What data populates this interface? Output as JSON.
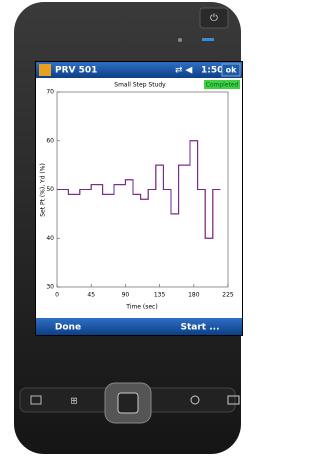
{
  "screen": {
    "title": "PRV 501",
    "time": "1:50",
    "ok": "ok",
    "status": "Completed",
    "left_softkey": "Done",
    "right_softkey": "Start ..."
  },
  "chart_data": {
    "type": "line",
    "title": "Small Step Study",
    "x_label": "Time (sec)",
    "y_label": "Set Pt (%), Yd (%)",
    "x": [
      0,
      15,
      15,
      30,
      30,
      45,
      45,
      60,
      60,
      75,
      75,
      90,
      90,
      100,
      100,
      110,
      110,
      120,
      120,
      130,
      130,
      140,
      140,
      150,
      150,
      160,
      160,
      175,
      175,
      185,
      185,
      195,
      195,
      205,
      205,
      215
    ],
    "series": [
      {
        "color": "#d01010",
        "values": [
          50,
          50,
          49,
          49,
          50,
          50,
          51,
          51,
          49,
          49,
          51,
          51,
          52,
          52,
          49,
          49,
          48,
          48,
          50,
          50,
          55,
          55,
          50,
          50,
          45,
          45,
          55,
          55,
          60,
          60,
          50,
          50,
          40,
          40,
          50,
          50
        ]
      },
      {
        "color": "#6a2a9a",
        "values": [
          50,
          50,
          49,
          49,
          50,
          50,
          51,
          51,
          49,
          49,
          51,
          51,
          52,
          52,
          49,
          49,
          48,
          48,
          50,
          50,
          55,
          55,
          50,
          50,
          45,
          45,
          55,
          55,
          60,
          60,
          50,
          50,
          40,
          40,
          50,
          50
        ]
      }
    ],
    "xlim": [
      0,
      225
    ],
    "xticks": [
      0,
      45,
      90,
      135,
      180,
      225
    ],
    "ylim": [
      30,
      70
    ],
    "yticks": [
      30,
      40,
      50,
      60,
      70
    ]
  }
}
